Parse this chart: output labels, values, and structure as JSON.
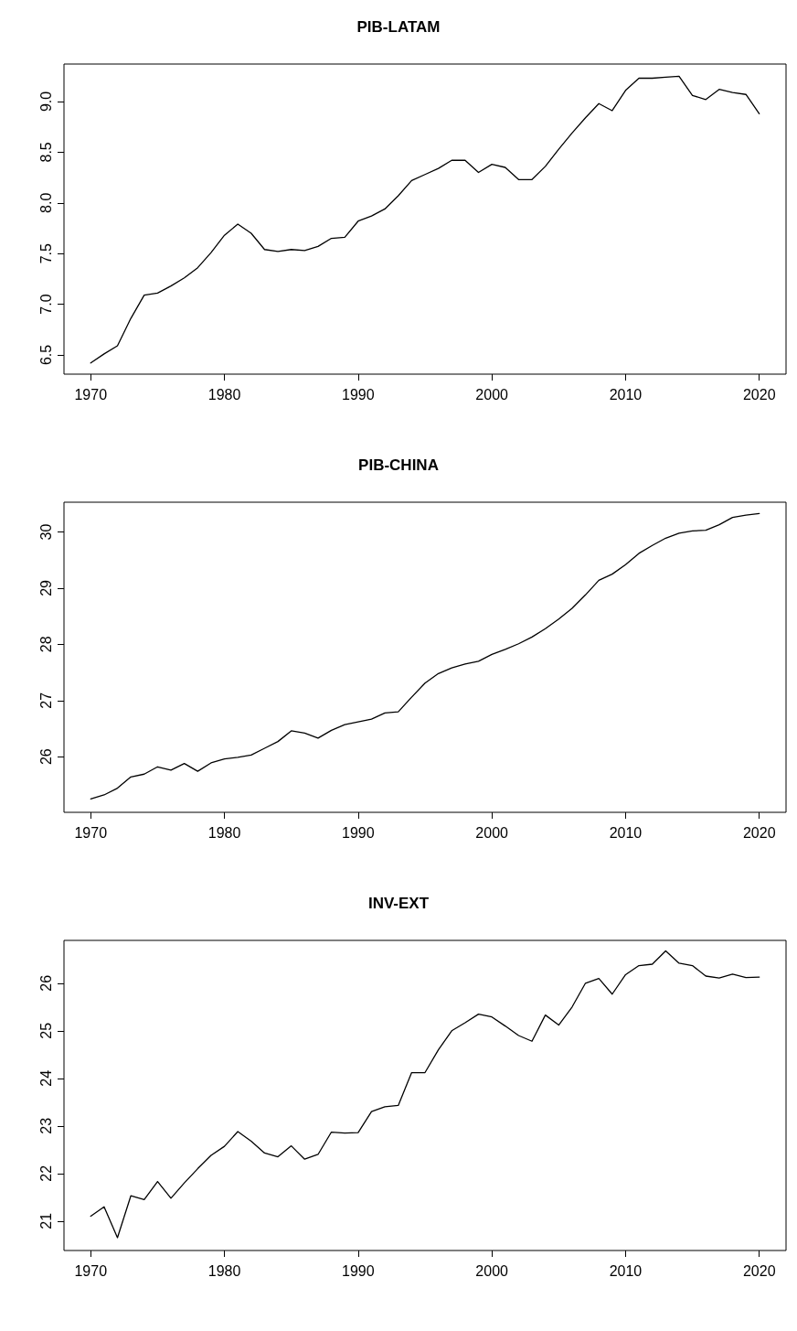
{
  "chart_data": [
    {
      "type": "line",
      "title": "PIB-LATAM",
      "marker": "none",
      "grid": false,
      "color": "#000000",
      "x": [
        1970,
        1971,
        1972,
        1973,
        1974,
        1975,
        1976,
        1977,
        1978,
        1979,
        1980,
        1981,
        1982,
        1983,
        1984,
        1985,
        1986,
        1987,
        1988,
        1989,
        1990,
        1991,
        1992,
        1993,
        1994,
        1995,
        1996,
        1997,
        1998,
        1999,
        2000,
        2001,
        2002,
        2003,
        2004,
        2005,
        2006,
        2007,
        2008,
        2009,
        2010,
        2011,
        2012,
        2013,
        2014,
        2015,
        2016,
        2017,
        2018,
        2019,
        2020
      ],
      "values": [
        6.42,
        6.51,
        6.59,
        6.86,
        7.09,
        7.11,
        7.18,
        7.26,
        7.36,
        7.51,
        7.68,
        7.79,
        7.7,
        7.54,
        7.52,
        7.54,
        7.53,
        7.57,
        7.65,
        7.66,
        7.82,
        7.87,
        7.94,
        8.07,
        8.22,
        8.28,
        8.34,
        8.42,
        8.42,
        8.3,
        8.38,
        8.35,
        8.23,
        8.23,
        8.36,
        8.53,
        8.69,
        8.84,
        8.98,
        8.91,
        9.11,
        9.23,
        9.23,
        9.24,
        9.25,
        9.06,
        9.02,
        9.12,
        9.09,
        9.07,
        8.88
      ],
      "xlim": [
        1968,
        2022
      ],
      "xticks": [
        1970,
        1980,
        1990,
        2000,
        2010,
        2020
      ],
      "ylim": [
        6.31,
        9.37
      ],
      "yticks": [
        6.5,
        {
          "value": 7,
          "label": "7.0"
        },
        7.5,
        {
          "value": 8,
          "label": "8.0"
        },
        8.5,
        {
          "value": 9,
          "label": "9.0"
        }
      ]
    },
    {
      "type": "line",
      "title": "PIB-CHINA",
      "marker": "none",
      "grid": false,
      "color": "#000000",
      "x": [
        1970,
        1971,
        1972,
        1973,
        1974,
        1975,
        1976,
        1977,
        1978,
        1979,
        1980,
        1981,
        1982,
        1983,
        1984,
        1985,
        1986,
        1987,
        1988,
        1989,
        1990,
        1991,
        1992,
        1993,
        1994,
        1995,
        1996,
        1997,
        1998,
        1999,
        2000,
        2001,
        2002,
        2003,
        2004,
        2005,
        2006,
        2007,
        2008,
        2009,
        2010,
        2011,
        2012,
        2013,
        2014,
        2015,
        2016,
        2017,
        2018,
        2019,
        2020
      ],
      "values": [
        25.25,
        25.32,
        25.44,
        25.64,
        25.69,
        25.82,
        25.76,
        25.88,
        25.74,
        25.89,
        25.96,
        25.99,
        26.03,
        26.15,
        26.27,
        26.46,
        26.42,
        26.33,
        26.47,
        26.57,
        26.62,
        26.67,
        26.78,
        26.8,
        27.06,
        27.31,
        27.48,
        27.58,
        27.65,
        27.7,
        27.82,
        27.91,
        28.01,
        28.13,
        28.28,
        28.45,
        28.64,
        28.88,
        29.14,
        29.25,
        29.42,
        29.62,
        29.76,
        29.89,
        29.98,
        30.02,
        30.03,
        30.13,
        30.26,
        30.3,
        30.33
      ],
      "xlim": [
        1968,
        2022
      ],
      "xticks": [
        1970,
        1980,
        1990,
        2000,
        2010,
        2020
      ],
      "ylim": [
        25.01,
        30.53
      ],
      "yticks": [
        26,
        27,
        28,
        29,
        30
      ]
    },
    {
      "type": "line",
      "title": "INV-EXT",
      "marker": "none",
      "grid": false,
      "color": "#000000",
      "x": [
        1970,
        1971,
        1972,
        1973,
        1974,
        1975,
        1976,
        1977,
        1978,
        1979,
        1980,
        1981,
        1982,
        1983,
        1984,
        1985,
        1986,
        1987,
        1988,
        1989,
        1990,
        1991,
        1992,
        1993,
        1994,
        1995,
        1996,
        1997,
        1998,
        1999,
        2000,
        2001,
        2002,
        2003,
        2004,
        2005,
        2006,
        2007,
        2008,
        2009,
        2010,
        2011,
        2012,
        2013,
        2014,
        2015,
        2016,
        2017,
        2018,
        2019,
        2020
      ],
      "values": [
        21.1,
        21.3,
        20.65,
        21.53,
        21.45,
        21.83,
        21.48,
        21.8,
        22.1,
        22.38,
        22.57,
        22.88,
        22.68,
        22.43,
        22.35,
        22.58,
        22.3,
        22.4,
        22.87,
        22.85,
        22.86,
        23.3,
        23.4,
        23.43,
        24.12,
        24.12,
        24.6,
        25.0,
        25.17,
        25.35,
        25.29,
        25.1,
        24.9,
        24.78,
        25.33,
        25.12,
        25.5,
        26.0,
        26.1,
        25.77,
        26.18,
        26.37,
        26.4,
        26.68,
        26.42,
        26.37,
        26.15,
        26.11,
        26.19,
        26.12,
        26.13
      ],
      "xlim": [
        1968,
        2022
      ],
      "xticks": [
        1970,
        1980,
        1990,
        2000,
        2010,
        2020
      ],
      "ylim": [
        20.38,
        26.9
      ],
      "yticks": [
        21,
        22,
        23,
        24,
        25,
        26
      ]
    }
  ]
}
